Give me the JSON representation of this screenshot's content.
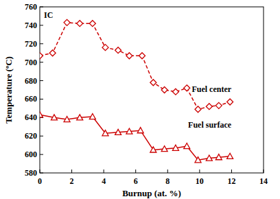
{
  "chart_data": {
    "type": "line",
    "x_label": "Burnup (at. %)",
    "y_label": "Temperature (ºC)",
    "annotations": [
      "IC"
    ],
    "xlim": [
      0,
      14
    ],
    "xticks": [
      0,
      2,
      4,
      6,
      8,
      10,
      12,
      14
    ],
    "ylim": [
      580,
      760
    ],
    "yticks": [
      580,
      600,
      620,
      640,
      660,
      680,
      700,
      720,
      740,
      760
    ],
    "grid": false,
    "series": [
      {
        "name": "Fuel center",
        "color": "#cc0000",
        "marker": "diamond",
        "line_style": "dashed",
        "x": [
          0,
          0.8,
          1.7,
          2.5,
          3.3,
          4.1,
          4.9,
          5.6,
          6.4,
          7.1,
          7.8,
          8.5,
          9.2,
          9.9,
          10.6,
          11.2,
          11.9
        ],
        "values": [
          707,
          710,
          743,
          742,
          742,
          716,
          713,
          707,
          707,
          678,
          670,
          668,
          672,
          649,
          652,
          653,
          657
        ]
      },
      {
        "name": "Fuel surface",
        "color": "#cc0000",
        "marker": "triangle",
        "line_style": "solid",
        "x": [
          0,
          0.9,
          1.7,
          2.5,
          3.3,
          4.1,
          4.9,
          5.6,
          6.3,
          7.1,
          7.8,
          8.5,
          9.2,
          9.9,
          10.6,
          11.2,
          11.9
        ],
        "values": [
          643,
          640,
          638,
          640,
          641,
          623,
          624,
          625,
          626,
          605,
          606,
          607,
          609,
          594,
          596,
          597,
          598
        ]
      }
    ]
  }
}
